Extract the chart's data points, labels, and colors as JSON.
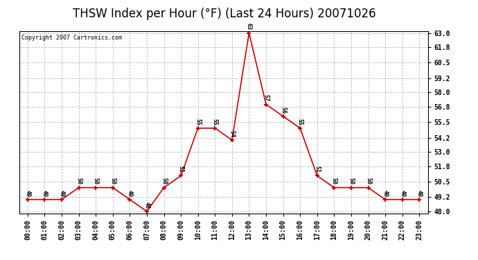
{
  "title": "THSW Index per Hour (°F) (Last 24 Hours) 20071026",
  "copyright": "Copyright 2007 Cartronics.com",
  "hours": [
    "00:00",
    "01:00",
    "02:00",
    "03:00",
    "04:00",
    "05:00",
    "06:00",
    "07:00",
    "08:00",
    "09:00",
    "10:00",
    "11:00",
    "12:00",
    "13:00",
    "14:00",
    "15:00",
    "16:00",
    "17:00",
    "18:00",
    "19:00",
    "20:00",
    "21:00",
    "22:00",
    "23:00"
  ],
  "values": [
    49,
    49,
    49,
    50,
    50,
    50,
    49,
    48,
    50,
    51,
    55,
    55,
    54,
    63,
    57,
    56,
    55,
    51,
    50,
    50,
    50,
    49,
    49,
    49
  ],
  "line_color": "#cc0000",
  "marker_color": "#cc0000",
  "bg_color": "#ffffff",
  "grid_color": "#bbbbbb",
  "ylim_min": 48.0,
  "ylim_max": 63.0,
  "yticks": [
    48.0,
    49.2,
    50.5,
    51.8,
    53.0,
    54.2,
    55.5,
    56.8,
    58.0,
    59.2,
    60.5,
    61.8,
    63.0
  ],
  "title_fontsize": 12,
  "copyright_fontsize": 6,
  "tick_label_fontsize": 7,
  "data_label_fontsize": 6
}
